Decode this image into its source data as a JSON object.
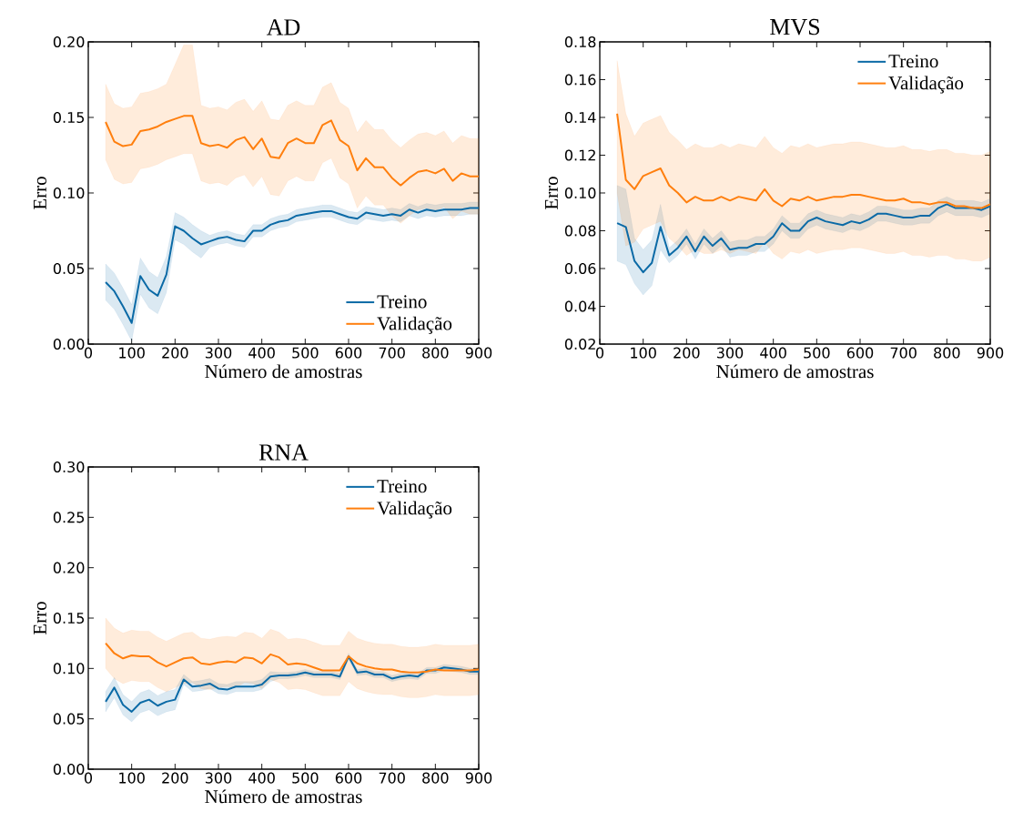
{
  "chart_data": [
    {
      "type": "line",
      "title": "AD",
      "xlabel": "Número de amostras",
      "ylabel": "Erro",
      "legend": "bottom right",
      "xlim": [
        0,
        900
      ],
      "ylim": [
        0,
        0.2
      ],
      "xticks": [
        0,
        100,
        200,
        300,
        400,
        500,
        600,
        700,
        800,
        900
      ],
      "yticks": [
        {
          "value": 0,
          "label": "0.00"
        },
        {
          "value": 0.05,
          "label": "0.05"
        },
        {
          "value": 0.1,
          "label": "0.10"
        },
        {
          "value": 0.15,
          "label": "0.15"
        },
        {
          "value": 0.2,
          "label": "0.20"
        }
      ],
      "x": [
        40,
        60,
        80,
        100,
        120,
        140,
        160,
        180,
        200,
        220,
        240,
        260,
        280,
        300,
        320,
        340,
        360,
        380,
        400,
        420,
        440,
        460,
        480,
        500,
        520,
        540,
        560,
        580,
        600,
        620,
        640,
        660,
        680,
        700,
        720,
        740,
        760,
        780,
        800,
        820,
        840,
        860,
        880,
        900
      ],
      "series": [
        {
          "name": "Treino",
          "color": "#0b6aa6",
          "values": [
            0.041,
            0.035,
            0.025,
            0.014,
            0.045,
            0.036,
            0.032,
            0.046,
            0.078,
            0.075,
            0.07,
            0.066,
            0.068,
            0.07,
            0.071,
            0.069,
            0.068,
            0.075,
            0.075,
            0.079,
            0.081,
            0.082,
            0.085,
            0.086,
            0.087,
            0.088,
            0.088,
            0.086,
            0.084,
            0.083,
            0.087,
            0.086,
            0.085,
            0.086,
            0.085,
            0.089,
            0.087,
            0.089,
            0.088,
            0.089,
            0.089,
            0.089,
            0.09,
            0.09
          ],
          "lower": [
            0.029,
            0.023,
            0.013,
            0.002,
            0.033,
            0.024,
            0.02,
            0.034,
            0.069,
            0.066,
            0.061,
            0.057,
            0.064,
            0.066,
            0.067,
            0.065,
            0.064,
            0.071,
            0.071,
            0.075,
            0.077,
            0.078,
            0.081,
            0.082,
            0.083,
            0.084,
            0.084,
            0.082,
            0.08,
            0.079,
            0.083,
            0.082,
            0.081,
            0.082,
            0.081,
            0.085,
            0.083,
            0.085,
            0.084,
            0.085,
            0.085,
            0.085,
            0.086,
            0.086
          ],
          "upper": [
            0.053,
            0.047,
            0.037,
            0.026,
            0.057,
            0.048,
            0.044,
            0.058,
            0.087,
            0.084,
            0.079,
            0.075,
            0.072,
            0.074,
            0.075,
            0.073,
            0.072,
            0.079,
            0.079,
            0.083,
            0.085,
            0.086,
            0.089,
            0.09,
            0.091,
            0.092,
            0.092,
            0.09,
            0.088,
            0.087,
            0.091,
            0.09,
            0.089,
            0.09,
            0.089,
            0.093,
            0.091,
            0.093,
            0.092,
            0.093,
            0.093,
            0.093,
            0.094,
            0.094
          ]
        },
        {
          "name": "Validação",
          "color": "#ff7f0e",
          "values": [
            0.147,
            0.134,
            0.131,
            0.132,
            0.141,
            0.142,
            0.144,
            0.147,
            0.149,
            0.151,
            0.151,
            0.133,
            0.131,
            0.132,
            0.13,
            0.135,
            0.137,
            0.129,
            0.136,
            0.124,
            0.123,
            0.133,
            0.136,
            0.133,
            0.133,
            0.145,
            0.148,
            0.135,
            0.131,
            0.115,
            0.123,
            0.117,
            0.117,
            0.11,
            0.105,
            0.11,
            0.114,
            0.115,
            0.113,
            0.116,
            0.108,
            0.113,
            0.111,
            0.111
          ],
          "lower": [
            0.122,
            0.109,
            0.106,
            0.107,
            0.116,
            0.117,
            0.119,
            0.122,
            0.124,
            0.126,
            0.126,
            0.108,
            0.106,
            0.107,
            0.105,
            0.11,
            0.112,
            0.104,
            0.111,
            0.099,
            0.098,
            0.108,
            0.111,
            0.108,
            0.108,
            0.12,
            0.123,
            0.11,
            0.106,
            0.09,
            0.098,
            0.092,
            0.092,
            0.085,
            0.08,
            0.085,
            0.089,
            0.09,
            0.088,
            0.091,
            0.083,
            0.088,
            0.086,
            0.086
          ],
          "upper": [
            0.172,
            0.159,
            0.156,
            0.157,
            0.166,
            0.167,
            0.169,
            0.172,
            0.185,
            0.198,
            0.198,
            0.158,
            0.156,
            0.157,
            0.155,
            0.16,
            0.162,
            0.154,
            0.161,
            0.149,
            0.148,
            0.158,
            0.161,
            0.158,
            0.158,
            0.17,
            0.173,
            0.16,
            0.156,
            0.14,
            0.148,
            0.142,
            0.142,
            0.135,
            0.13,
            0.135,
            0.139,
            0.14,
            0.138,
            0.141,
            0.133,
            0.138,
            0.136,
            0.136
          ]
        }
      ]
    },
    {
      "type": "line",
      "title": "MVS",
      "xlabel": "Número de amostras",
      "ylabel": "Erro",
      "legend": "top right",
      "xlim": [
        0,
        900
      ],
      "ylim": [
        0.02,
        0.18
      ],
      "xticks": [
        0,
        100,
        200,
        300,
        400,
        500,
        600,
        700,
        800,
        900
      ],
      "yticks": [
        0.02,
        0.04,
        0.06,
        0.08,
        {
          "value": 0.1,
          "label": "0.10"
        },
        0.12,
        0.14,
        0.16,
        0.18
      ],
      "x": [
        40,
        60,
        80,
        100,
        120,
        140,
        160,
        180,
        200,
        220,
        240,
        260,
        280,
        300,
        320,
        340,
        360,
        380,
        400,
        420,
        440,
        460,
        480,
        500,
        520,
        540,
        560,
        580,
        600,
        620,
        640,
        660,
        680,
        700,
        720,
        740,
        760,
        780,
        800,
        820,
        840,
        860,
        880,
        900
      ],
      "series": [
        {
          "name": "Treino",
          "color": "#0b6aa6",
          "values": [
            0.084,
            0.082,
            0.064,
            0.058,
            0.063,
            0.082,
            0.067,
            0.071,
            0.077,
            0.069,
            0.077,
            0.072,
            0.076,
            0.07,
            0.071,
            0.071,
            0.073,
            0.073,
            0.077,
            0.084,
            0.08,
            0.08,
            0.085,
            0.087,
            0.085,
            0.084,
            0.083,
            0.085,
            0.084,
            0.086,
            0.089,
            0.089,
            0.088,
            0.087,
            0.087,
            0.088,
            0.088,
            0.092,
            0.094,
            0.092,
            0.092,
            0.092,
            0.091,
            0.093
          ],
          "lower": [
            0.064,
            0.062,
            0.052,
            0.046,
            0.051,
            0.07,
            0.063,
            0.067,
            0.073,
            0.065,
            0.073,
            0.068,
            0.072,
            0.066,
            0.067,
            0.067,
            0.069,
            0.069,
            0.073,
            0.08,
            0.076,
            0.076,
            0.081,
            0.083,
            0.081,
            0.08,
            0.079,
            0.081,
            0.08,
            0.082,
            0.085,
            0.085,
            0.084,
            0.083,
            0.083,
            0.084,
            0.084,
            0.088,
            0.09,
            0.088,
            0.088,
            0.088,
            0.087,
            0.089
          ],
          "upper": [
            0.104,
            0.102,
            0.076,
            0.07,
            0.075,
            0.094,
            0.071,
            0.075,
            0.081,
            0.073,
            0.081,
            0.076,
            0.08,
            0.074,
            0.075,
            0.075,
            0.077,
            0.077,
            0.081,
            0.088,
            0.084,
            0.084,
            0.089,
            0.091,
            0.089,
            0.088,
            0.087,
            0.089,
            0.088,
            0.09,
            0.093,
            0.093,
            0.092,
            0.091,
            0.091,
            0.092,
            0.092,
            0.096,
            0.098,
            0.096,
            0.096,
            0.096,
            0.095,
            0.097
          ]
        },
        {
          "name": "Validação",
          "color": "#ff7f0e",
          "values": [
            0.142,
            0.107,
            0.102,
            0.109,
            0.111,
            0.113,
            0.104,
            0.1,
            0.095,
            0.098,
            0.096,
            0.096,
            0.098,
            0.096,
            0.098,
            0.097,
            0.096,
            0.102,
            0.096,
            0.093,
            0.097,
            0.096,
            0.098,
            0.096,
            0.097,
            0.098,
            0.098,
            0.099,
            0.099,
            0.098,
            0.097,
            0.096,
            0.096,
            0.097,
            0.095,
            0.095,
            0.094,
            0.095,
            0.095,
            0.093,
            0.093,
            0.092,
            0.092,
            0.094
          ],
          "lower": [
            0.1,
            0.072,
            0.074,
            0.081,
            0.083,
            0.085,
            0.076,
            0.072,
            0.067,
            0.07,
            0.068,
            0.068,
            0.07,
            0.068,
            0.07,
            0.069,
            0.068,
            0.074,
            0.068,
            0.065,
            0.069,
            0.068,
            0.07,
            0.068,
            0.069,
            0.07,
            0.07,
            0.071,
            0.071,
            0.07,
            0.069,
            0.068,
            0.068,
            0.069,
            0.067,
            0.067,
            0.066,
            0.067,
            0.067,
            0.065,
            0.065,
            0.064,
            0.064,
            0.066
          ],
          "upper": [
            0.17,
            0.142,
            0.13,
            0.137,
            0.139,
            0.141,
            0.132,
            0.128,
            0.123,
            0.126,
            0.124,
            0.124,
            0.126,
            0.124,
            0.126,
            0.125,
            0.124,
            0.13,
            0.124,
            0.121,
            0.125,
            0.124,
            0.126,
            0.124,
            0.125,
            0.126,
            0.126,
            0.127,
            0.127,
            0.126,
            0.125,
            0.124,
            0.124,
            0.125,
            0.123,
            0.123,
            0.122,
            0.123,
            0.123,
            0.121,
            0.121,
            0.12,
            0.12,
            0.122
          ]
        }
      ]
    },
    {
      "type": "line",
      "title": "RNA",
      "xlabel": "Número de amostras",
      "ylabel": "Erro",
      "legend": "top right",
      "xlim": [
        0,
        900
      ],
      "ylim": [
        0,
        0.3
      ],
      "xticks": [
        0,
        100,
        200,
        300,
        400,
        500,
        600,
        700,
        800,
        900
      ],
      "yticks": [
        {
          "value": 0,
          "label": "0.00"
        },
        0.05,
        {
          "value": 0.1,
          "label": "0.10"
        },
        0.15,
        {
          "value": 0.2,
          "label": "0.20"
        },
        0.25,
        {
          "value": 0.3,
          "label": "0.30"
        }
      ],
      "x": [
        40,
        60,
        80,
        100,
        120,
        140,
        160,
        180,
        200,
        220,
        240,
        260,
        280,
        300,
        320,
        340,
        360,
        380,
        400,
        420,
        440,
        460,
        480,
        500,
        520,
        540,
        560,
        580,
        600,
        620,
        640,
        660,
        680,
        700,
        720,
        740,
        760,
        780,
        800,
        820,
        840,
        860,
        880,
        900
      ],
      "series": [
        {
          "name": "Treino",
          "color": "#0b6aa6",
          "values": [
            0.067,
            0.081,
            0.064,
            0.057,
            0.066,
            0.069,
            0.063,
            0.067,
            0.069,
            0.089,
            0.082,
            0.083,
            0.085,
            0.08,
            0.079,
            0.082,
            0.082,
            0.082,
            0.084,
            0.092,
            0.093,
            0.093,
            0.094,
            0.096,
            0.094,
            0.094,
            0.094,
            0.092,
            0.112,
            0.096,
            0.097,
            0.094,
            0.094,
            0.09,
            0.092,
            0.093,
            0.092,
            0.098,
            0.098,
            0.101,
            0.1,
            0.099,
            0.097,
            0.097
          ],
          "lower": [
            0.057,
            0.071,
            0.054,
            0.047,
            0.056,
            0.059,
            0.053,
            0.057,
            0.059,
            0.084,
            0.077,
            0.078,
            0.08,
            0.075,
            0.074,
            0.077,
            0.077,
            0.077,
            0.079,
            0.087,
            0.09,
            0.09,
            0.091,
            0.093,
            0.091,
            0.091,
            0.091,
            0.089,
            0.109,
            0.093,
            0.094,
            0.091,
            0.091,
            0.087,
            0.089,
            0.09,
            0.089,
            0.095,
            0.095,
            0.098,
            0.097,
            0.096,
            0.094,
            0.094
          ],
          "upper": [
            0.077,
            0.091,
            0.074,
            0.067,
            0.076,
            0.079,
            0.073,
            0.077,
            0.079,
            0.094,
            0.087,
            0.088,
            0.09,
            0.085,
            0.084,
            0.087,
            0.087,
            0.087,
            0.089,
            0.097,
            0.096,
            0.096,
            0.097,
            0.099,
            0.097,
            0.097,
            0.097,
            0.095,
            0.115,
            0.099,
            0.1,
            0.097,
            0.097,
            0.093,
            0.095,
            0.096,
            0.095,
            0.101,
            0.101,
            0.104,
            0.103,
            0.102,
            0.1,
            0.1
          ]
        },
        {
          "name": "Validação",
          "color": "#ff7f0e",
          "values": [
            0.125,
            0.115,
            0.11,
            0.113,
            0.112,
            0.112,
            0.106,
            0.102,
            0.106,
            0.11,
            0.111,
            0.105,
            0.104,
            0.106,
            0.107,
            0.106,
            0.111,
            0.11,
            0.105,
            0.114,
            0.111,
            0.104,
            0.105,
            0.104,
            0.101,
            0.098,
            0.098,
            0.098,
            0.112,
            0.105,
            0.102,
            0.1,
            0.099,
            0.099,
            0.097,
            0.096,
            0.096,
            0.097,
            0.099,
            0.098,
            0.098,
            0.098,
            0.098,
            0.099
          ],
          "lower": [
            0.1,
            0.09,
            0.085,
            0.088,
            0.087,
            0.087,
            0.081,
            0.077,
            0.081,
            0.085,
            0.086,
            0.08,
            0.079,
            0.081,
            0.082,
            0.081,
            0.086,
            0.085,
            0.08,
            0.089,
            0.086,
            0.079,
            0.08,
            0.079,
            0.076,
            0.073,
            0.073,
            0.073,
            0.087,
            0.08,
            0.077,
            0.075,
            0.074,
            0.074,
            0.072,
            0.071,
            0.071,
            0.072,
            0.074,
            0.073,
            0.073,
            0.073,
            0.073,
            0.074
          ],
          "upper": [
            0.15,
            0.14,
            0.135,
            0.138,
            0.137,
            0.137,
            0.131,
            0.127,
            0.131,
            0.135,
            0.136,
            0.13,
            0.129,
            0.131,
            0.132,
            0.131,
            0.136,
            0.135,
            0.13,
            0.139,
            0.136,
            0.129,
            0.13,
            0.129,
            0.126,
            0.123,
            0.123,
            0.123,
            0.137,
            0.13,
            0.127,
            0.125,
            0.124,
            0.124,
            0.122,
            0.121,
            0.121,
            0.122,
            0.124,
            0.123,
            0.123,
            0.123,
            0.123,
            0.124
          ]
        }
      ]
    }
  ]
}
